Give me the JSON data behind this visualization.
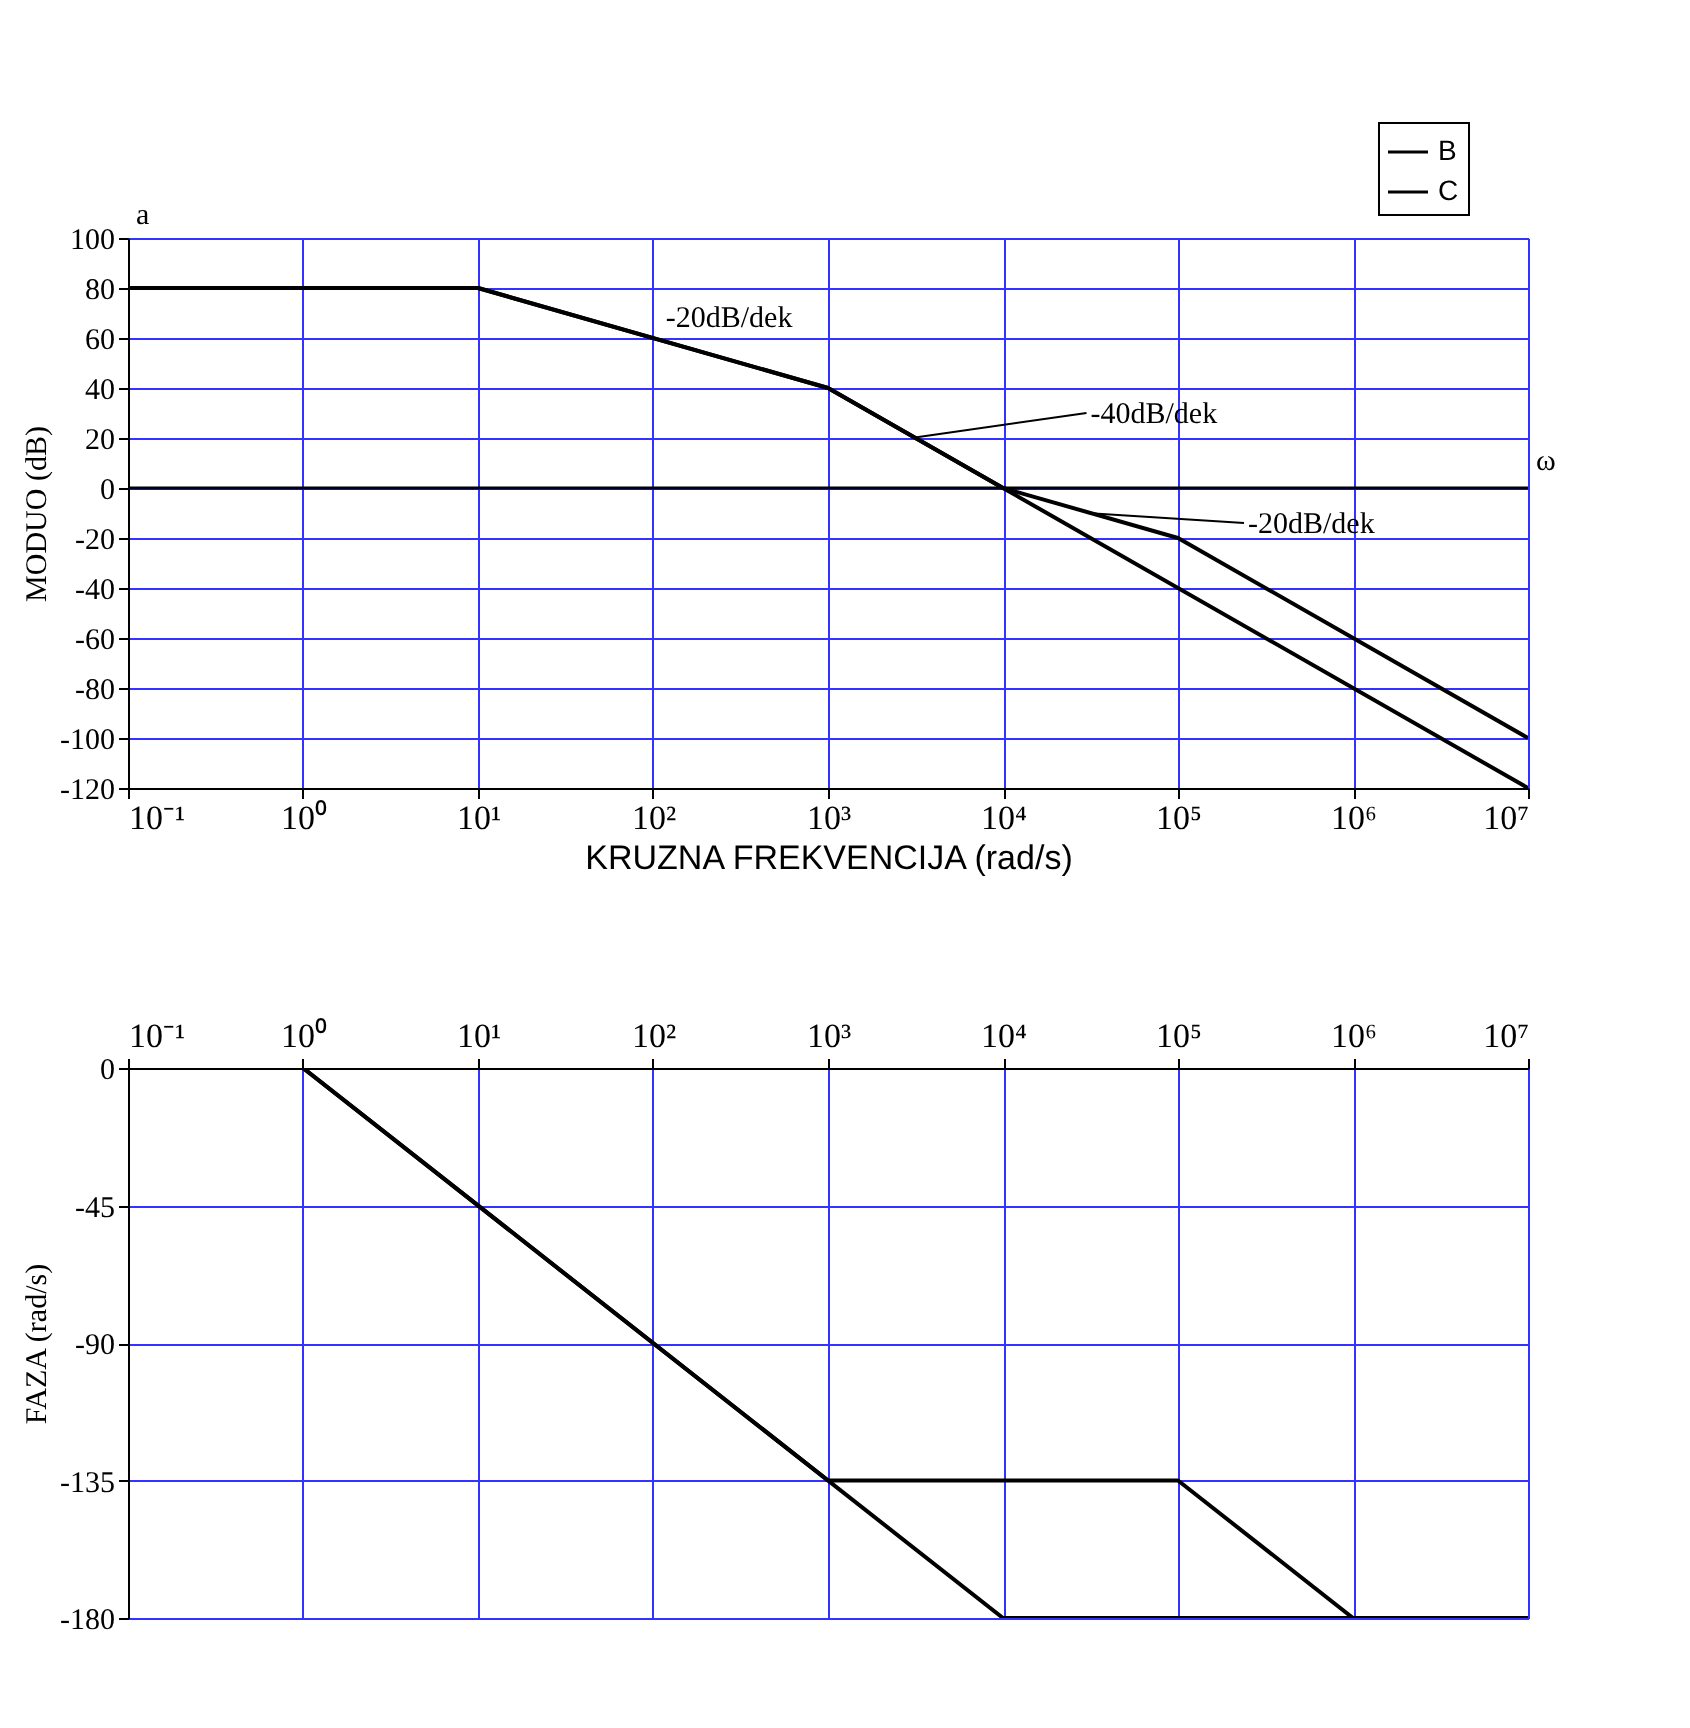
{
  "chart_data": [
    {
      "type": "line",
      "ylabel": "MODUO (dB)",
      "xlabel": "KRUZNA FREKVENCIJA (rad/s)",
      "log": "x",
      "grid": true,
      "legend": "top right",
      "line_style": "solid",
      "marker": "none",
      "xlim": [
        0.1,
        10000000
      ],
      "xticks": [
        {
          "value": 0.1,
          "label": "10⁻¹"
        },
        {
          "value": 1,
          "label": "10⁰"
        },
        {
          "value": 10,
          "label": "10¹"
        },
        {
          "value": 100,
          "label": "10²"
        },
        {
          "value": 1000,
          "label": "10³"
        },
        {
          "value": 10000,
          "label": "10⁴"
        },
        {
          "value": 100000,
          "label": "10⁵"
        },
        {
          "value": 1000000,
          "label": "10⁶"
        },
        {
          "value": 10000000,
          "label": "10⁷"
        }
      ],
      "ylim": [
        -120,
        100
      ],
      "yticks": [
        -120,
        -100,
        -80,
        -60,
        -40,
        -20,
        0,
        20,
        40,
        60,
        80,
        100
      ],
      "ref_lines": [
        {
          "axis": "y",
          "value": 0,
          "color": "#000000"
        }
      ],
      "series": [
        {
          "name": "B",
          "color": "#000000",
          "x": [
            0.1,
            10,
            1000,
            10000,
            10000000
          ],
          "values": [
            80,
            80,
            40,
            0,
            -120
          ]
        },
        {
          "name": "C",
          "color": "#000000",
          "x": [
            0.1,
            10,
            1000,
            10000,
            100000,
            10000000
          ],
          "values": [
            80,
            80,
            40,
            0,
            -20,
            -100
          ]
        }
      ],
      "annotations": [
        {
          "text": "-20dB/dek",
          "x": 100,
          "y": 60
        },
        {
          "text": "-40dB/dek",
          "x": 3000,
          "y": 20
        },
        {
          "text": "-20dB/dek",
          "x": 30000,
          "y": -10
        },
        "a",
        "ω"
      ]
    },
    {
      "type": "line",
      "ylabel": "FAZA (rad/s)",
      "log": "x",
      "grid": true,
      "legend": "top right",
      "line_style": "solid",
      "marker": "none",
      "xlim": [
        0.1,
        10000000
      ],
      "xticks": [
        {
          "value": 0.1,
          "label": "10⁻¹"
        },
        {
          "value": 1,
          "label": "10⁰"
        },
        {
          "value": 10,
          "label": "10¹"
        },
        {
          "value": 100,
          "label": "10²"
        },
        {
          "value": 1000,
          "label": "10³"
        },
        {
          "value": 10000,
          "label": "10⁴"
        },
        {
          "value": 100000,
          "label": "10⁵"
        },
        {
          "value": 1000000,
          "label": "10⁶"
        },
        {
          "value": 10000000,
          "label": "10⁷"
        }
      ],
      "ylim": [
        -180,
        0
      ],
      "yticks": [
        -180,
        -135,
        -90,
        -45,
        0
      ],
      "series": [
        {
          "name": "B",
          "color": "#000000",
          "x": [
            1,
            10000,
            10000000
          ],
          "values": [
            0,
            -180,
            -180
          ]
        },
        {
          "name": "C",
          "color": "#000000",
          "x": [
            1,
            1000,
            100000,
            1000000,
            10000000
          ],
          "values": [
            0,
            -135,
            -135,
            -180,
            -180
          ]
        }
      ]
    }
  ]
}
